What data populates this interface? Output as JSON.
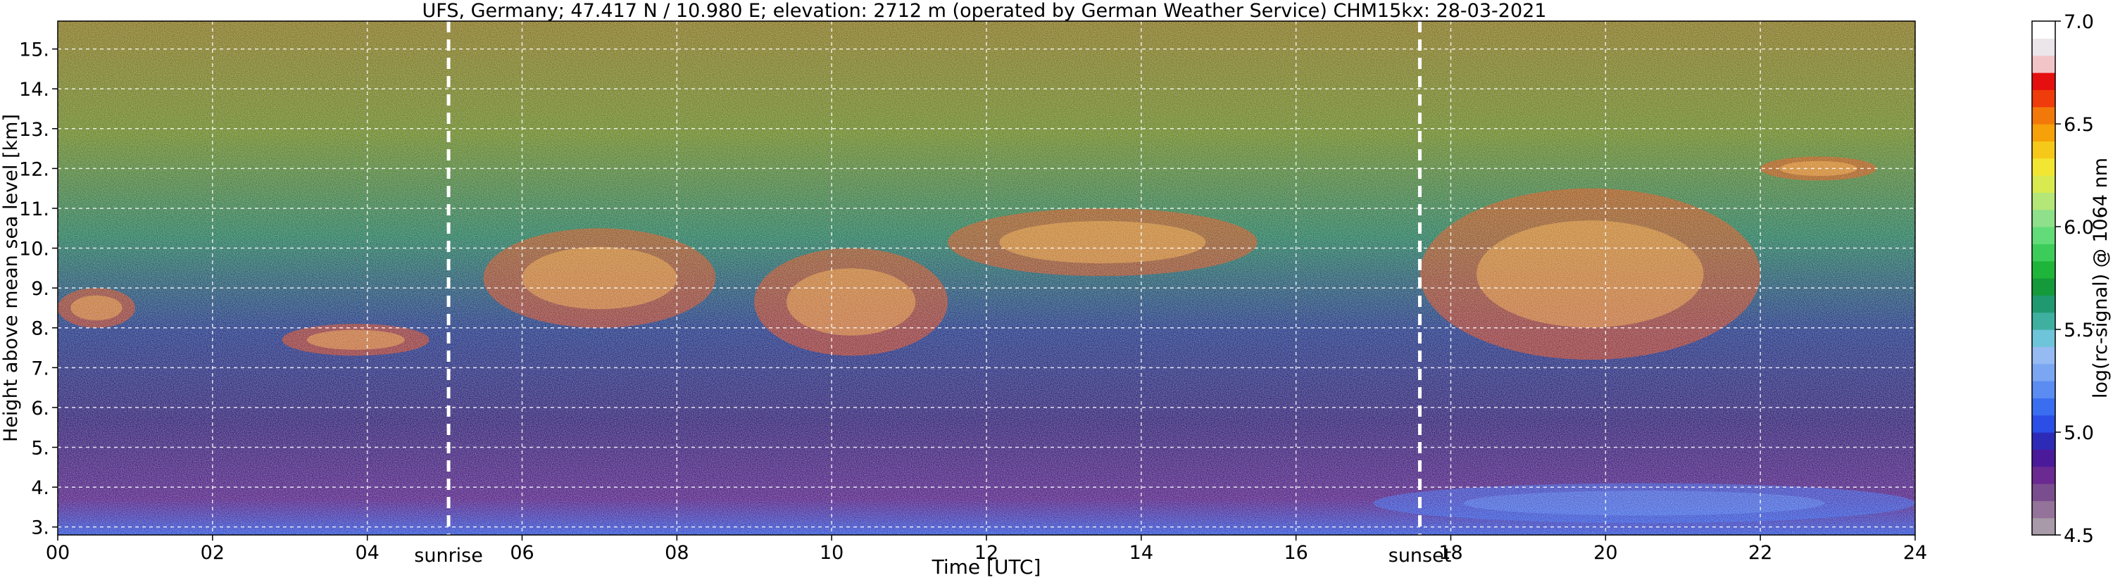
{
  "chart_data": {
    "type": "heatmap",
    "title": "UFS, Germany; 47.417 N / 10.980 E; elevation: 2712 m  (operated by German Weather Service)     CHM15kx: 28-03-2021",
    "xlabel": "Time [UTC]",
    "ylabel": "Height above mean sea level [km]",
    "xlim": [
      0,
      24
    ],
    "ylim": [
      2.8,
      15.7
    ],
    "x_ticks": [
      0,
      2,
      4,
      6,
      8,
      10,
      12,
      14,
      16,
      18,
      20,
      22,
      24
    ],
    "x_tick_labels": [
      "00",
      "02",
      "04",
      "06",
      "08",
      "10",
      "12",
      "14",
      "16",
      "18",
      "20",
      "22",
      "24"
    ],
    "y_ticks": [
      3,
      4,
      5,
      6,
      7,
      8,
      9,
      10,
      11,
      12,
      13,
      14,
      15
    ],
    "y_tick_labels": [
      "3.",
      "4.",
      "5.",
      "6.",
      "7.",
      "8.",
      "9.",
      "10.",
      "11.",
      "12.",
      "13.",
      "14.",
      "15."
    ],
    "grid": true,
    "markers": [
      {
        "label": "sunrise",
        "x": 5.05
      },
      {
        "label": "sunset",
        "x": 17.6
      }
    ],
    "colorbar": {
      "label": "log(rc-signal) @ 1064 nm",
      "range": [
        4.5,
        7.0
      ],
      "ticks": [
        4.5,
        5.0,
        5.5,
        6.0,
        6.5,
        7.0
      ],
      "tick_labels": [
        "4.5",
        "5.0",
        "5.5",
        "6.0",
        "6.5",
        "7.0"
      ],
      "colors": [
        "#a89aa8",
        "#94739a",
        "#7a4d8f",
        "#6a2a92",
        "#4b1a9a",
        "#2e2ab8",
        "#2a4ee6",
        "#3a6ef0",
        "#5a8cf2",
        "#7aa6f2",
        "#96baf2",
        "#6ec4d8",
        "#3fb0a0",
        "#1f9a70",
        "#149a3a",
        "#1fb43a",
        "#3ccc5a",
        "#62dc78",
        "#8ee08a",
        "#b4e678",
        "#d8ea50",
        "#f2e632",
        "#f6c81a",
        "#f6a00a",
        "#f2780a",
        "#ee3c0a",
        "#e60f0f",
        "#f2c4c8",
        "#ece6ea",
        "#ffffff"
      ]
    },
    "features": [
      {
        "name": "cloud-layer",
        "x_range": [
          0.0,
          1.0
        ],
        "y_range": [
          8.0,
          9.0
        ]
      },
      {
        "name": "cloud-layer",
        "x_range": [
          2.9,
          4.8
        ],
        "y_range": [
          7.3,
          8.1
        ]
      },
      {
        "name": "cloud-layer",
        "x_range": [
          5.5,
          8.5
        ],
        "y_range": [
          8.0,
          10.5
        ]
      },
      {
        "name": "cloud-layer",
        "x_range": [
          9.0,
          11.5
        ],
        "y_range": [
          7.3,
          10.0
        ]
      },
      {
        "name": "cloud-layer",
        "x_range": [
          11.5,
          15.5
        ],
        "y_range": [
          9.3,
          11.0
        ]
      },
      {
        "name": "cloud-layer",
        "x_range": [
          17.6,
          22.0
        ],
        "y_range": [
          7.2,
          11.5
        ]
      },
      {
        "name": "cloud-layer",
        "x_range": [
          22.0,
          23.5
        ],
        "y_range": [
          11.7,
          12.3
        ]
      },
      {
        "name": "boundary-layer",
        "x_range": [
          17.0,
          24.0
        ],
        "y_range": [
          3.1,
          4.1
        ]
      }
    ]
  }
}
